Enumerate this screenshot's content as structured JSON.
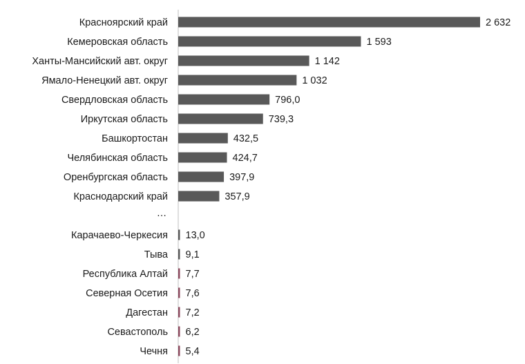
{
  "chart_data": {
    "type": "bar",
    "orientation": "horizontal",
    "title": "",
    "xlabel": "",
    "ylabel": "",
    "grid": false,
    "legend": "none",
    "colors": {
      "bar": "#595959",
      "small_bar": "#8c4a5e",
      "axis": "#bfbfbf",
      "text": "#1a1a1a"
    },
    "ellipsis": "…",
    "top_group": [
      {
        "category": "Красноярский край",
        "value": 2632,
        "label": "2 632"
      },
      {
        "category": "Кемеровская область",
        "value": 1593,
        "label": "1 593"
      },
      {
        "category": "Ханты-Мансийский авт. округ",
        "value": 1142,
        "label": "1 142"
      },
      {
        "category": "Ямало-Ненецкий авт. округ",
        "value": 1032,
        "label": "1 032"
      },
      {
        "category": "Свердловская область",
        "value": 796.0,
        "label": "796,0"
      },
      {
        "category": "Иркутская область",
        "value": 739.3,
        "label": "739,3"
      },
      {
        "category": "Башкортостан",
        "value": 432.5,
        "label": "432,5"
      },
      {
        "category": "Челябинская область",
        "value": 424.7,
        "label": "424,7"
      },
      {
        "category": "Оренбургская область",
        "value": 397.9,
        "label": "397,9"
      },
      {
        "category": "Краснодарский край",
        "value": 357.9,
        "label": "357,9"
      }
    ],
    "bottom_group": [
      {
        "category": "Карачаево-Черкесия",
        "value": 13.0,
        "label": "13,0"
      },
      {
        "category": "Тыва",
        "value": 9.1,
        "label": "9,1"
      },
      {
        "category": "Республика Алтай",
        "value": 7.7,
        "label": "7,7"
      },
      {
        "category": "Северная Осетия",
        "value": 7.6,
        "label": "7,6"
      },
      {
        "category": "Дагестан",
        "value": 7.2,
        "label": "7,2"
      },
      {
        "category": "Севастополь",
        "value": 6.2,
        "label": "6,2"
      },
      {
        "category": "Чечня",
        "value": 5.4,
        "label": "5,4"
      }
    ]
  }
}
